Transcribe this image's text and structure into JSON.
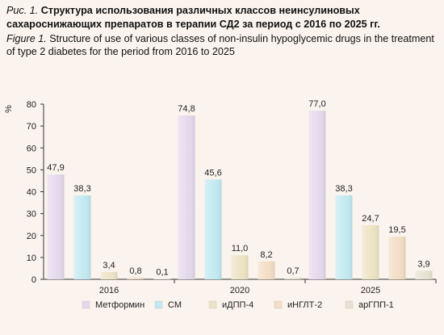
{
  "caption": {
    "ru_label": "Рис. 1.",
    "ru_text": "Структура использования различных классов неинсулиновых сахароснижающих препаратов в терапии СД2 за период с 2016 по 2025 гг.",
    "en_label": "Figure 1.",
    "en_text": "Structure of use of various classes of non-insulin hypoglycemic drugs in the treatment of type 2 diabetes for the period from 2016 to 2025"
  },
  "chart_data": {
    "type": "bar",
    "title": "",
    "xlabel": "",
    "ylabel": "%",
    "ylim": [
      0,
      80
    ],
    "yticks": [
      0,
      10,
      20,
      30,
      40,
      50,
      60,
      70,
      80
    ],
    "grid": false,
    "legend_position": "bottom",
    "categories": [
      "2016",
      "2020",
      "2025"
    ],
    "series": [
      {
        "name": "Метформин",
        "color": "#e4d9ec",
        "values": [
          47.9,
          74.8,
          77.0
        ],
        "labels": [
          "47,9",
          "74,8",
          "77,0"
        ]
      },
      {
        "name": "СМ",
        "color": "#c2e9f1",
        "values": [
          38.3,
          45.6,
          38.3
        ],
        "labels": [
          "38,3",
          "45,6",
          "38,3"
        ]
      },
      {
        "name": "иДПП-4",
        "color": "#ede3c4",
        "values": [
          3.4,
          11.0,
          24.7
        ],
        "labels": [
          "3,4",
          "11,0",
          "24,7"
        ]
      },
      {
        "name": "иНГЛТ-2",
        "color": "#f3ddc5",
        "values": [
          0.8,
          8.2,
          19.5
        ],
        "labels": [
          "0,8",
          "8,2",
          "19,5"
        ]
      },
      {
        "name": "арГПП-1",
        "color": "#e7e2d3",
        "values": [
          0.1,
          0.7,
          3.9
        ],
        "labels": [
          "0,1",
          "0,7",
          "3,9"
        ]
      }
    ]
  }
}
